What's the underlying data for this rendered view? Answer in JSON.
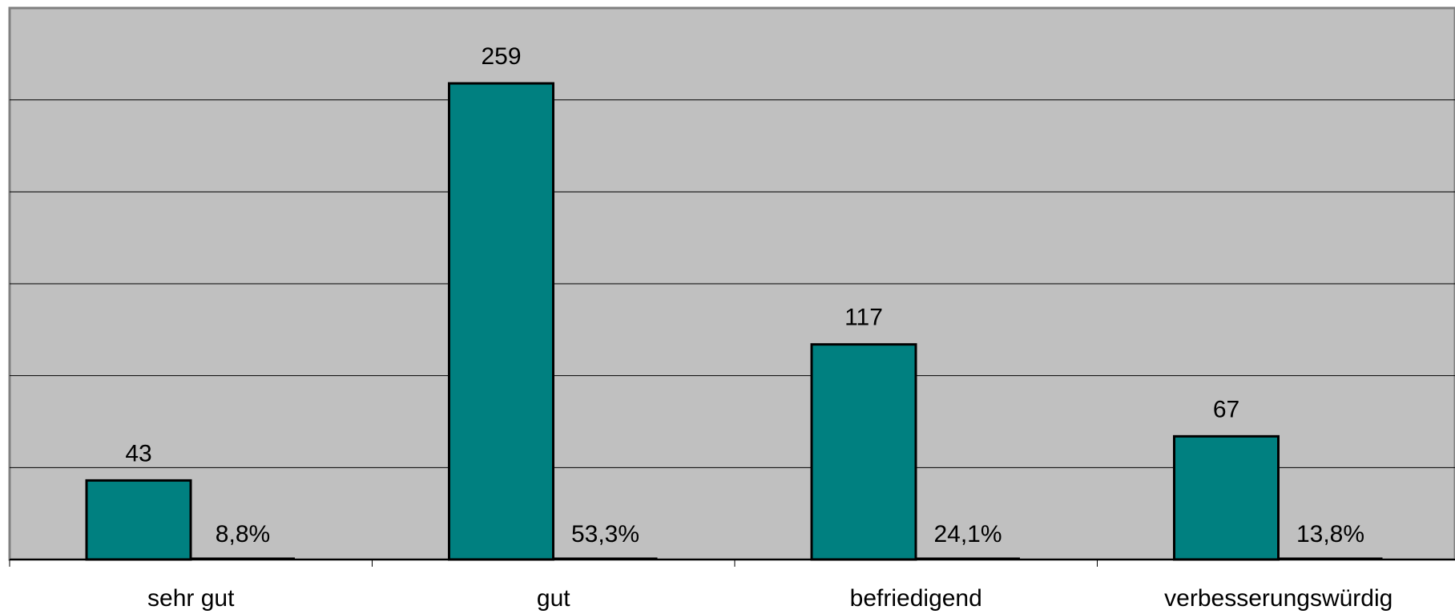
{
  "chart_data": {
    "type": "bar",
    "categories": [
      "sehr gut",
      "gut",
      "befriedigend",
      "verbesserungswürdig"
    ],
    "series": [
      {
        "values": [
          43,
          259,
          117,
          67
        ],
        "value_labels": [
          "43",
          "259",
          "117",
          "67"
        ]
      },
      {
        "values": [
          8.8,
          53.3,
          24.1,
          13.8
        ],
        "value_labels": [
          "8,8%",
          "53,3%",
          "24,1%",
          "13,8%"
        ]
      }
    ],
    "title": "",
    "xlabel": "",
    "ylabel": "",
    "ylim": [
      0,
      300
    ],
    "y_gridlines": [
      50,
      100,
      150,
      200,
      250
    ],
    "grid": true,
    "legend": "none"
  },
  "colors": {
    "plot_background": "#c0c0c0",
    "bar_fill": "#008080",
    "bar_stroke": "#000000",
    "gridline": "#000000",
    "frame": "#808080"
  }
}
